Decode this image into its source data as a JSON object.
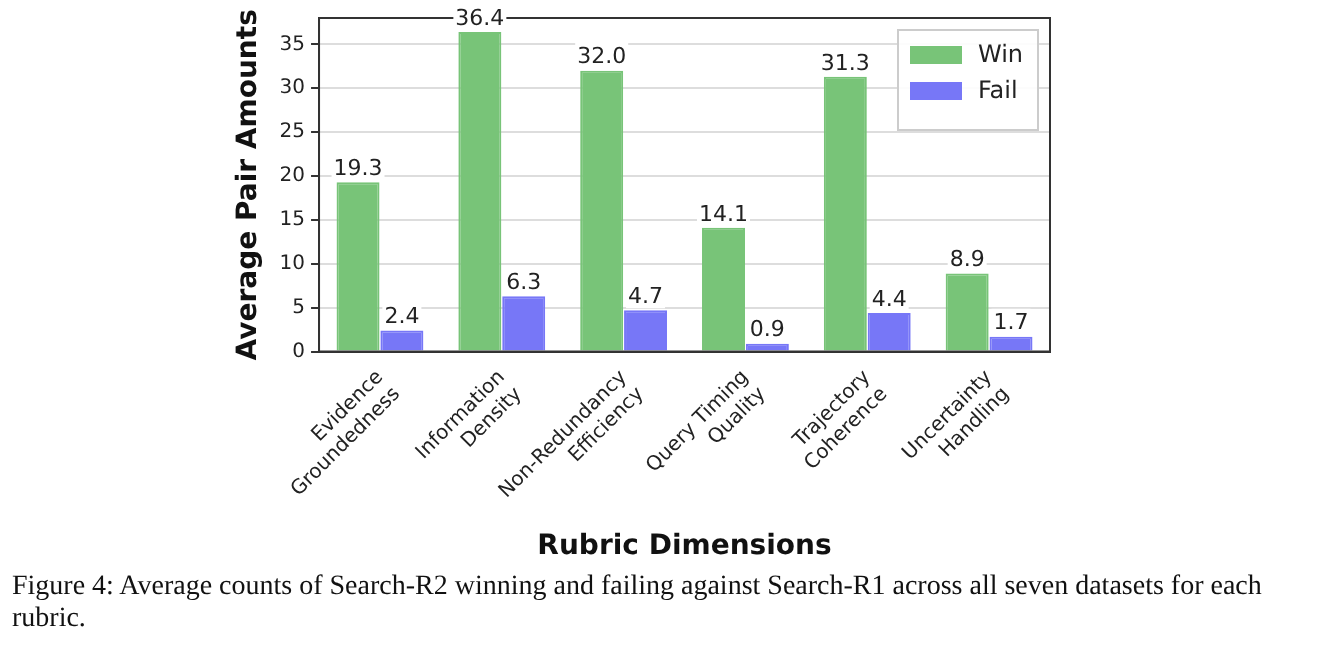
{
  "chart_data": {
    "type": "bar",
    "xlabel": "Rubric Dimensions",
    "ylabel": "Average Pair Amounts",
    "categories": [
      "Evidence Groundedness",
      "Information Density",
      "Non-Redundancy Efficiency",
      "Query Timing Quality",
      "Trajectory Coherence",
      "Uncertainty Handling"
    ],
    "series": [
      {
        "name": "Win",
        "color": "#78c478",
        "values": [
          19.3,
          36.4,
          32.0,
          14.1,
          31.3,
          8.9
        ],
        "value_labels": [
          "19.3",
          "36.4",
          "32.0",
          "14.1",
          "31.3",
          "8.9"
        ]
      },
      {
        "name": "Fail",
        "color": "#7777f7",
        "values": [
          2.4,
          6.3,
          4.7,
          0.9,
          4.4,
          1.7
        ],
        "value_labels": [
          "2.4",
          "6.3",
          "4.7",
          "0.9",
          "4.4",
          "1.7"
        ]
      }
    ],
    "ylim": [
      0,
      38
    ],
    "yticks": [
      0,
      5,
      10,
      15,
      20,
      25,
      30,
      35
    ],
    "grid": "y",
    "legend": "top right",
    "annotations": [
      "Figure 4: Average counts of Search-R2 winning and failing against Search-R1 across all seven datasets for each rubric."
    ]
  }
}
